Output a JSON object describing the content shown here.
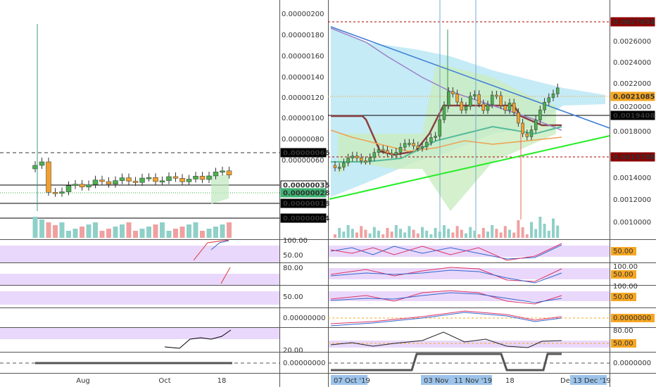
{
  "left_chart": {
    "price_axis": [
      "0.00000200",
      "0.00000180",
      "0.00000160",
      "0.00000140",
      "0.00000120",
      "0.00000100",
      "0.00000080",
      "0.00000060"
    ],
    "price_tags": [
      "0.00000066",
      "0.00000035",
      "0.00000028",
      "0.00000018",
      "0.00000004"
    ],
    "indicator_axis": [
      "100.00",
      "50.00",
      "80.00",
      "50.00",
      "0.00000000",
      "20.00",
      "0.00000000"
    ],
    "time_axis": [
      "Aug",
      "Oct",
      "18"
    ]
  },
  "right_chart": {
    "price_axis": [
      "0.0026000",
      "0.0024000",
      "0.0022000",
      "0.0020000",
      "0.0018000",
      "0.0014000",
      "0.0012000",
      "0.0010000"
    ],
    "price_tags": [
      "0.0027654",
      "0.0021085",
      "0.0019408",
      "0.0015788"
    ],
    "indicator_axis": [
      "50.00",
      "100.00",
      "50.00",
      "100.00",
      "50.00",
      "0.0000000",
      "80.00",
      "50.00",
      "0.0000000"
    ],
    "time_axis": [
      "07 Oct '19",
      "03 Nov '19",
      "11 Nov '19",
      "18",
      "De",
      "13 Dec '19"
    ]
  }
}
